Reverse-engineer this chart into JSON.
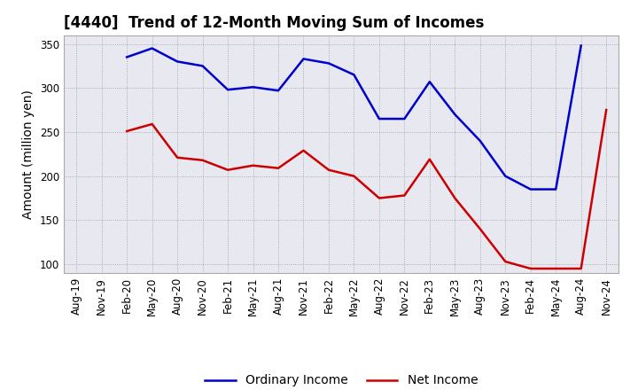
{
  "title": "[4440]  Trend of 12-Month Moving Sum of Incomes",
  "ylabel": "Amount (million yen)",
  "ylim": [
    90,
    360
  ],
  "yticks": [
    100,
    150,
    200,
    250,
    300,
    350
  ],
  "x_labels": [
    "Aug-19",
    "Nov-19",
    "Feb-20",
    "May-20",
    "Aug-20",
    "Nov-20",
    "Feb-21",
    "May-21",
    "Aug-21",
    "Nov-21",
    "Feb-22",
    "May-22",
    "Aug-22",
    "Nov-22",
    "Feb-23",
    "May-23",
    "Aug-23",
    "Nov-23",
    "Feb-24",
    "May-24",
    "Aug-24",
    "Nov-24"
  ],
  "ordinary_income": [
    null,
    null,
    335,
    345,
    330,
    325,
    298,
    301,
    297,
    333,
    328,
    315,
    265,
    265,
    307,
    270,
    240,
    200,
    185,
    185,
    348,
    null
  ],
  "net_income": [
    null,
    null,
    251,
    259,
    221,
    218,
    207,
    212,
    209,
    229,
    207,
    200,
    175,
    178,
    219,
    175,
    140,
    103,
    95,
    95,
    95,
    275
  ],
  "ordinary_color": "#0000cc",
  "net_color": "#cc0000",
  "background_color": "#e8e8f0",
  "plot_bg_color": "#e8e8f0",
  "grid_color": "#888888",
  "title_fontsize": 12,
  "label_fontsize": 10,
  "tick_fontsize": 8.5,
  "legend_fontsize": 10,
  "line_width": 1.8
}
